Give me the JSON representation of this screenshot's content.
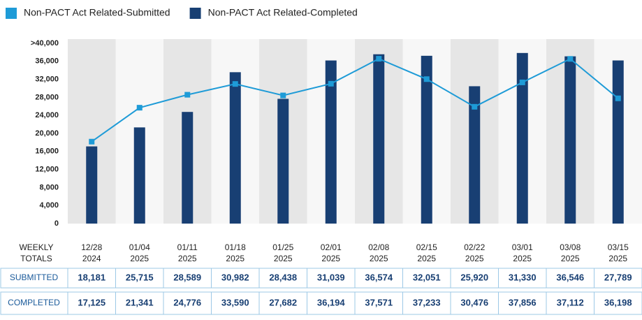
{
  "chart_data": {
    "type": "bar-line",
    "categories": [
      [
        "12/28",
        "2024"
      ],
      [
        "01/04",
        "2025"
      ],
      [
        "01/11",
        "2025"
      ],
      [
        "01/18",
        "2025"
      ],
      [
        "01/25",
        "2025"
      ],
      [
        "02/01",
        "2025"
      ],
      [
        "02/08",
        "2025"
      ],
      [
        "02/15",
        "2025"
      ],
      [
        "02/22",
        "2025"
      ],
      [
        "03/01",
        "2025"
      ],
      [
        "03/08",
        "2025"
      ],
      [
        "03/15",
        "2025"
      ]
    ],
    "series": [
      {
        "name": "Non-PACT Act Related-Submitted",
        "row_label": "SUBMITTED",
        "color": "#1e9bd7",
        "kind": "line",
        "values": [
          18181,
          25715,
          28589,
          30982,
          28438,
          31039,
          36574,
          32051,
          25920,
          31330,
          36546,
          27789
        ],
        "value_labels": [
          "18,181",
          "25,715",
          "28,589",
          "30,982",
          "28,438",
          "31,039",
          "36,574",
          "32,051",
          "25,920",
          "31,330",
          "36,546",
          "27,789"
        ]
      },
      {
        "name": "Non-PACT Act Related-Completed",
        "row_label": "COMPLETED",
        "color": "#183f73",
        "kind": "bar",
        "values": [
          17125,
          21341,
          24776,
          33590,
          27682,
          36194,
          37571,
          37233,
          30476,
          37856,
          37112,
          36198
        ],
        "value_labels": [
          "17,125",
          "21,341",
          "24,776",
          "33,590",
          "27,682",
          "36,194",
          "37,571",
          "37,233",
          "30,476",
          "37,856",
          "37,112",
          "36,198"
        ]
      }
    ],
    "row_header": [
      "WEEKLY",
      "TOTALS"
    ],
    "ylim": [
      0,
      40000
    ],
    "yticks": [
      0,
      {
        "value": 4000,
        "label": "4,000"
      },
      {
        "value": 8000,
        "label": "8,000"
      },
      {
        "value": 12000,
        "label": "12,000"
      },
      {
        "value": 16000,
        "label": "16,000"
      },
      {
        "value": 20000,
        "label": "20,000"
      },
      {
        "value": 24000,
        "label": "24,000"
      },
      {
        "value": 28000,
        "label": "28,000"
      },
      {
        "value": 32000,
        "label": "32,000"
      },
      {
        "value": 36000,
        "label": "36,000"
      },
      {
        "value": 40000,
        "label": ">40,000"
      }
    ],
    "grid": false,
    "legend": "top-left"
  }
}
